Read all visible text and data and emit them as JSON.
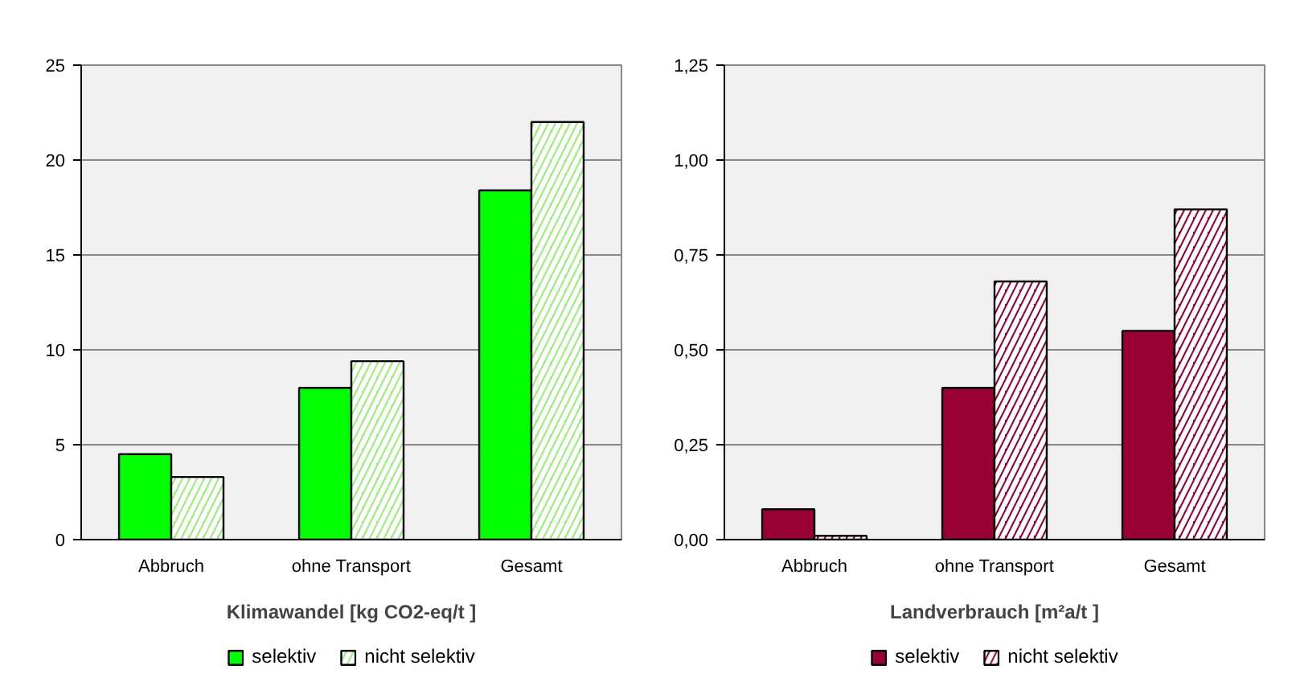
{
  "chart_data": [
    {
      "type": "bar",
      "categories": [
        "Abbruch",
        "ohne Transport",
        "Gesamt"
      ],
      "xlabel": "Klimawandel [kg CO2-eq/t ]",
      "series": [
        {
          "name": "selektiv",
          "color": "#00ff00",
          "values": [
            4.5,
            8.0,
            18.4
          ]
        },
        {
          "name": "nicht selektiv",
          "color": "#99ee77",
          "values": [
            3.3,
            9.4,
            22.0
          ]
        }
      ],
      "ylim": [
        0,
        25
      ],
      "yticks": [
        0,
        5,
        10,
        15,
        20,
        25
      ],
      "grid": "y",
      "legend": "bottom"
    },
    {
      "type": "bar",
      "categories": [
        "Abbruch",
        "ohne Transport",
        "Gesamt"
      ],
      "xlabel": "Landverbrauch [m²a/t ]",
      "series": [
        {
          "name": "selektiv",
          "color": "#990033",
          "values": [
            0.08,
            0.4,
            0.55
          ]
        },
        {
          "name": "nicht selektiv",
          "color": "#990033",
          "values": [
            0.01,
            0.68,
            0.87
          ]
        }
      ],
      "ylim": [
        0,
        1.25
      ],
      "yticks": [
        {
          "value": 0,
          "label": "0,00"
        },
        {
          "value": 0.25,
          "label": "0,25"
        },
        {
          "value": 0.5,
          "label": "0,50"
        },
        {
          "value": 0.75,
          "label": "0,75"
        },
        {
          "value": 1.0,
          "label": "1,00"
        },
        {
          "value": 1.25,
          "label": "1,25"
        }
      ],
      "grid": "y",
      "legend": "bottom"
    }
  ]
}
